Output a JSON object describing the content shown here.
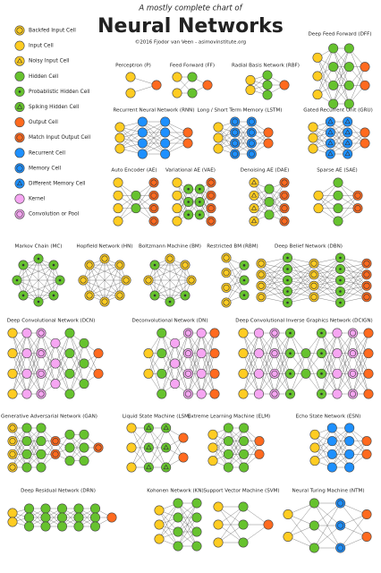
{
  "header": {
    "subtitle": "A mostly complete chart of",
    "title": "Neural Networks",
    "credit": "©2016 Fjodor van Veen - asimovinstitute.org"
  },
  "legend": [
    "Backfed Input Cell",
    "Input Cell",
    "Noisy Input Cell",
    "Hidden Cell",
    "Probablistic Hidden Cell",
    "Spiking Hidden Cell",
    "Output Cell",
    "Match Input Output Cell",
    "Recurrent Cell",
    "Memory Cell",
    "Different Memory Cell",
    "Kernel",
    "Convolution or Pool"
  ],
  "networks": [
    {
      "title": "Perceptron (P)"
    },
    {
      "title": "Feed Forward (FF)"
    },
    {
      "title": "Radial Basis Network (RBF)"
    },
    {
      "title": "Deep Feed Forward (DFF)"
    },
    {
      "title": "Recurrent Neural Network (RNN)"
    },
    {
      "title": "Long / Short Term Memory (LSTM)"
    },
    {
      "title": "Gated Recurrent Unit (GRU)"
    },
    {
      "title": "Auto Encoder (AE)"
    },
    {
      "title": "Variational AE (VAE)"
    },
    {
      "title": "Denoising AE (DAE)"
    },
    {
      "title": "Sparse AE (SAE)"
    },
    {
      "title": "Markov Chain (MC)"
    },
    {
      "title": "Hopfield Network (HN)"
    },
    {
      "title": "Boltzmann Machine (BM)"
    },
    {
      "title": "Restricted BM (RBM)"
    },
    {
      "title": "Deep Belief Network (DBN)"
    },
    {
      "title": "Deep Convolutional Network (DCN)"
    },
    {
      "title": "Deconvolutional Network (DN)"
    },
    {
      "title": "Deep Convolutional Inverse Graphics Network (DCIGN)"
    },
    {
      "title": "Generative Adversarial Network (GAN)"
    },
    {
      "title": "Liquid State Machine (LSM)"
    },
    {
      "title": "Extreme Learning Machine (ELM)"
    },
    {
      "title": "Echo State Network (ESN)"
    },
    {
      "title": "Deep Residual Network (DRN)"
    },
    {
      "title": "Kohonen Network (KN)"
    },
    {
      "title": "Support Vector Machine (SVM)"
    },
    {
      "title": "Neural Turing Machine (NTM)"
    }
  ]
}
